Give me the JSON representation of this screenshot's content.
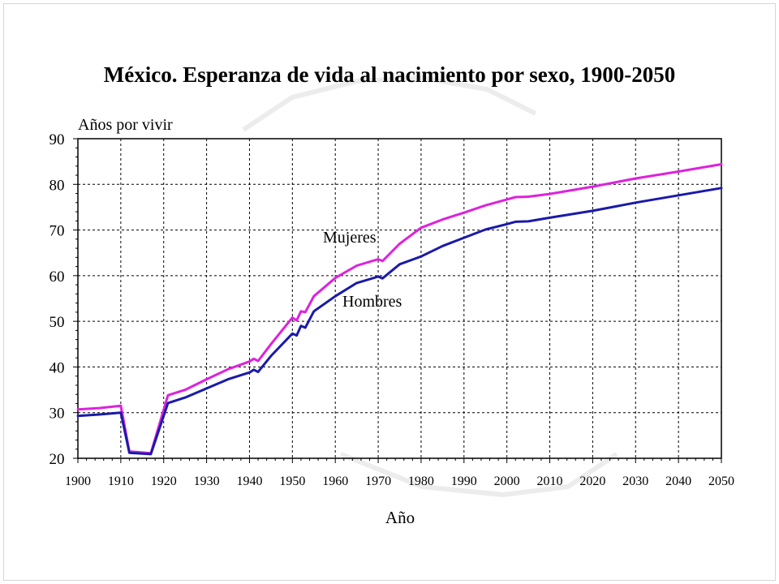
{
  "chart_data": {
    "type": "line",
    "title": "México. Esperanza de vida al nacimiento por sexo, 1900-2050",
    "ylabel": "Años por vivir",
    "xlabel": "Año",
    "xlim": [
      1900,
      2050
    ],
    "ylim": [
      20,
      90
    ],
    "xticks": [
      1900,
      1910,
      1920,
      1930,
      1940,
      1950,
      1960,
      1970,
      1980,
      1990,
      2000,
      2010,
      2020,
      2030,
      2040,
      2050
    ],
    "yticks": [
      20,
      30,
      40,
      50,
      60,
      70,
      80,
      90
    ],
    "grid": true,
    "colors": {
      "mujeres": "#dd22dd",
      "hombres": "#1a1aaa"
    },
    "series": [
      {
        "name": "Mujeres",
        "x": [
          1900,
          1905,
          1910,
          1912,
          1917,
          1921,
          1925,
          1930,
          1935,
          1940,
          1941,
          1942,
          1945,
          1950,
          1951,
          1952,
          1953,
          1955,
          1960,
          1965,
          1970,
          1971,
          1975,
          1980,
          1985,
          1990,
          1995,
          2000,
          2002,
          2005,
          2010,
          2020,
          2030,
          2040,
          2050
        ],
        "values": [
          30.7,
          31.0,
          31.5,
          21.5,
          21.1,
          33.8,
          35.0,
          37.3,
          39.5,
          41.2,
          41.8,
          41.3,
          45.0,
          50.8,
          50.2,
          52.2,
          52.0,
          55.5,
          59.5,
          62.2,
          63.6,
          63.2,
          67.0,
          70.5,
          72.3,
          73.8,
          75.4,
          76.7,
          77.2,
          77.3,
          77.9,
          79.5,
          81.3,
          82.8,
          84.4
        ]
      },
      {
        "name": "Hombres",
        "x": [
          1900,
          1905,
          1910,
          1912,
          1917,
          1921,
          1925,
          1930,
          1935,
          1940,
          1941,
          1942,
          1945,
          1950,
          1951,
          1952,
          1953,
          1955,
          1960,
          1965,
          1970,
          1971,
          1975,
          1980,
          1985,
          1990,
          1995,
          2000,
          2002,
          2005,
          2010,
          2020,
          2030,
          2040,
          2050
        ],
        "values": [
          29.3,
          29.6,
          30.0,
          21.2,
          20.9,
          32.1,
          33.3,
          35.3,
          37.3,
          38.8,
          39.4,
          38.9,
          42.4,
          47.3,
          46.9,
          49.0,
          48.6,
          52.2,
          55.5,
          58.4,
          59.8,
          59.4,
          62.5,
          64.2,
          66.5,
          68.3,
          70.1,
          71.3,
          71.8,
          71.9,
          72.7,
          74.2,
          76.0,
          77.6,
          79.2
        ]
      }
    ],
    "annotations": [
      "Mujeres",
      "Hombres"
    ]
  }
}
